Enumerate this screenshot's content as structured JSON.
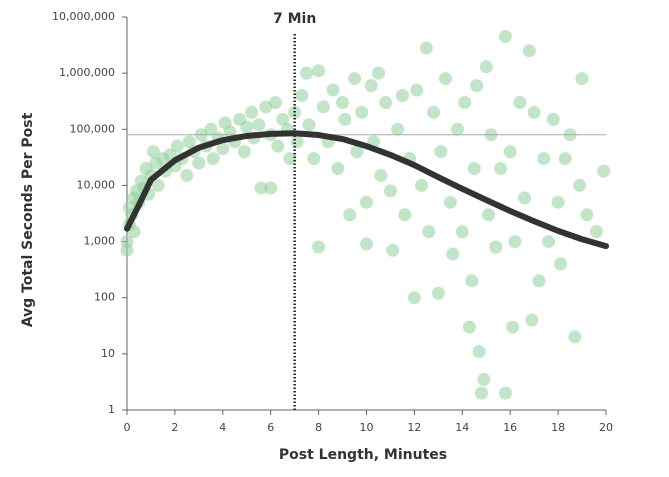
{
  "chart_data": {
    "type": "scatter",
    "x_label": "Post Length, Minutes",
    "y_label": "Avg Total Seconds Per Post",
    "xlim": [
      0,
      20
    ],
    "xticks": [
      0,
      2,
      4,
      6,
      8,
      10,
      12,
      14,
      16,
      18,
      20
    ],
    "ylim": [
      1,
      10000000
    ],
    "yticks": [
      1,
      10,
      100,
      {
        "value": 1000,
        "label": "1,000"
      },
      {
        "value": 10000,
        "label": "10,000"
      },
      {
        "value": 100000,
        "label": "100,000"
      },
      {
        "value": 1000000,
        "label": "1,000,000"
      },
      {
        "value": 10000000,
        "label": "10,000,000"
      }
    ],
    "log_y": true,
    "color": "#8fd09a",
    "x": [
      0,
      0,
      0.1,
      0.1,
      0.2,
      0.3,
      0.3,
      0.4,
      0.5,
      0.6,
      0.7,
      0.8,
      0.9,
      1,
      1.1,
      1.2,
      1.3,
      1.5,
      1.6,
      1.8,
      2,
      2.1,
      2.3,
      2.5,
      2.6,
      2.8,
      3,
      3.1,
      3.3,
      3.5,
      3.6,
      3.8,
      4,
      4.1,
      4.3,
      4.5,
      4.7,
      4.9,
      5,
      5.2,
      5.3,
      5.5,
      5.6,
      5.8,
      6,
      6,
      6.2,
      6.3,
      6.5,
      6.7,
      6.8,
      7,
      7.1,
      7.3,
      7.5,
      7.6,
      7.8,
      8,
      8,
      8.2,
      8.4,
      8.6,
      8.8,
      9,
      9.1,
      9.3,
      9.5,
      9.6,
      9.8,
      10,
      10,
      10.2,
      10.3,
      10.5,
      10.6,
      10.8,
      11,
      11.1,
      11.3,
      11.5,
      11.6,
      11.8,
      12,
      12.1,
      12.3,
      12.5,
      12.6,
      12.8,
      13,
      13.1,
      13.3,
      13.5,
      13.6,
      13.8,
      14,
      14.1,
      14.3,
      14.4,
      14.5,
      14.6,
      14.7,
      14.8,
      14.9,
      15,
      15.1,
      15.2,
      15.4,
      15.6,
      15.8,
      15.8,
      16,
      16.1,
      16.2,
      16.4,
      16.6,
      16.8,
      16.9,
      17,
      17.2,
      17.4,
      17.6,
      17.8,
      18,
      18.1,
      18.3,
      18.5,
      18.7,
      18.9,
      19,
      19.2,
      19.6,
      19.9
    ],
    "values": [
      700,
      1000,
      2000,
      4000,
      3000,
      6000,
      1500,
      8000,
      5000,
      12000,
      9000,
      20000,
      7000,
      15000,
      40000,
      25000,
      10000,
      30000,
      18000,
      35000,
      22000,
      50000,
      30000,
      15000,
      60000,
      40000,
      25000,
      80000,
      50000,
      100000,
      30000,
      70000,
      45000,
      130000,
      90000,
      60000,
      150000,
      40000,
      110000,
      200000,
      70000,
      120000,
      9000,
      250000,
      80000,
      9000,
      300000,
      50000,
      150000,
      100000,
      30000,
      200000,
      60000,
      400000,
      1000000,
      120000,
      30000,
      1100000,
      800,
      250000,
      60000,
      500000,
      20000,
      300000,
      150000,
      3000,
      800000,
      40000,
      200000,
      5000,
      900,
      600000,
      60000,
      1000000,
      15000,
      300000,
      8000,
      700,
      100000,
      400000,
      3000,
      30000,
      100,
      500000,
      10000,
      2800000,
      1500,
      200000,
      120,
      40000,
      800000,
      5000,
      600,
      100000,
      1500,
      300000,
      30,
      200,
      20000,
      600000,
      11,
      2,
      3.5,
      1300000,
      3000,
      80000,
      800,
      20000,
      4500000,
      2,
      40000,
      30,
      1000,
      300000,
      6000,
      2500000,
      40,
      200000,
      200,
      30000,
      1000,
      150000,
      5000,
      400,
      30000,
      80000,
      20,
      10000,
      800000,
      3000,
      1500,
      18000
    ],
    "trend": {
      "color": "#333333",
      "x": [
        0,
        0.5,
        1,
        2,
        3,
        4,
        5,
        6,
        7,
        8,
        9,
        10,
        11,
        12,
        13,
        14,
        15,
        16,
        17,
        18,
        19,
        20
      ],
      "values": [
        1700,
        4500,
        12600,
        28000,
        47000,
        64000,
        76000,
        83000,
        85000,
        79000,
        67000,
        50000,
        35000,
        23000,
        14000,
        8700,
        5500,
        3500,
        2300,
        1550,
        1100,
        830
      ]
    },
    "hline": 80000,
    "vline": {
      "x": 7,
      "label": "7 Min"
    }
  }
}
